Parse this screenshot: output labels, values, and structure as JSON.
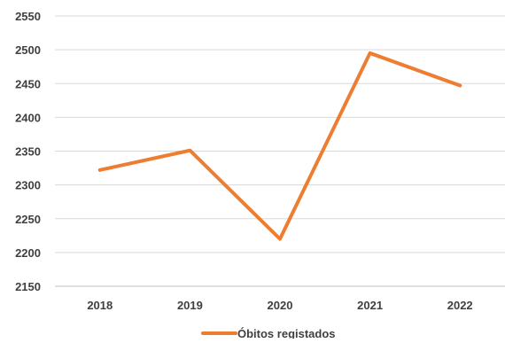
{
  "chart_data": {
    "type": "line",
    "title": "",
    "xlabel": "",
    "ylabel": "",
    "categories": [
      "2018",
      "2019",
      "2020",
      "2021",
      "2022"
    ],
    "series": [
      {
        "name": "Óbitos registados",
        "color": "#ED7D31",
        "values": [
          2322,
          2351,
          2220,
          2495,
          2447
        ]
      }
    ],
    "ylim": [
      2150,
      2550
    ],
    "yticks": [
      2150,
      2200,
      2250,
      2300,
      2350,
      2400,
      2450,
      2500,
      2550
    ],
    "grid": true,
    "legend_position": "bottom"
  }
}
